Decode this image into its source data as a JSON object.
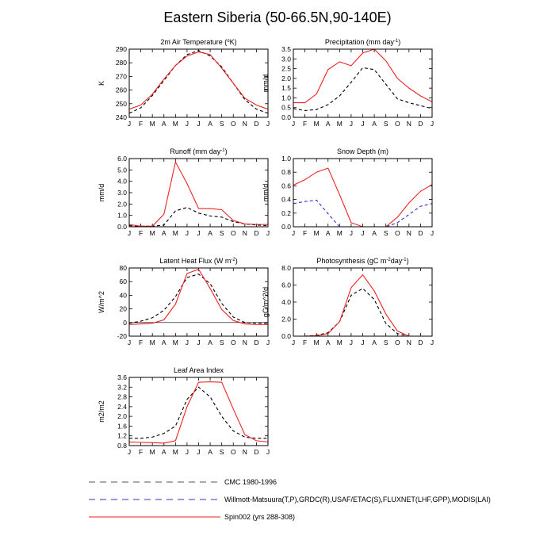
{
  "figure": {
    "title": "Eastern Siberia (50-66.5N,90-140E)"
  },
  "months": [
    "J",
    "F",
    "M",
    "A",
    "M",
    "J",
    "J",
    "A",
    "S",
    "O",
    "N",
    "D",
    "J"
  ],
  "legend": [
    {
      "key": "cmc",
      "label": "CMC 1980-1996",
      "color": "#555555",
      "dash": "8,6"
    },
    {
      "key": "obs",
      "label": "Willmott-Matsuura(T,P),GRDC(R),USAF/ETAC(S),FLUXNET(LHF,GPP),MODIS(LAI)",
      "color": "#3333cc",
      "dash": "8,6"
    },
    {
      "key": "spin",
      "label": "Spin002 (yrs 288-308)",
      "color": "#ee2222",
      "dash": ""
    }
  ],
  "chart_data": [
    {
      "type": "line",
      "title": "2m Air Temperature (",
      "title_sup": "o",
      "title_tail": "K)",
      "ylabel": "K",
      "ylim": [
        240,
        290
      ],
      "yticks": [
        "240",
        "250",
        "260",
        "270",
        "280",
        "290"
      ],
      "yvals": [
        240,
        250,
        260,
        270,
        280,
        290
      ],
      "series": [
        {
          "key": "cmc",
          "values": [
            243,
            247,
            256,
            267,
            278,
            286,
            289,
            285,
            277,
            265,
            253,
            246,
            243
          ]
        },
        {
          "key": "spin",
          "values": [
            246,
            249,
            257,
            268,
            278,
            285,
            288,
            286,
            276,
            265,
            254,
            249,
            246
          ]
        }
      ]
    },
    {
      "type": "line",
      "title": "Precipitation (mm day",
      "title_sup": "-1",
      "title_tail": ")",
      "ylabel": "mm/d",
      "ylim": [
        0,
        3.5
      ],
      "yticks": [
        "0.0",
        "0.5",
        "1.0",
        "1.5",
        "2.0",
        "2.5",
        "3.0",
        "3.5"
      ],
      "yvals": [
        0,
        0.5,
        1,
        1.5,
        2,
        2.5,
        3,
        3.5
      ],
      "series": [
        {
          "key": "cmc",
          "values": [
            0.45,
            0.35,
            0.4,
            0.65,
            1.1,
            1.8,
            2.55,
            2.45,
            1.7,
            0.95,
            0.75,
            0.6,
            0.45
          ]
        },
        {
          "key": "spin",
          "values": [
            0.75,
            0.75,
            1.2,
            2.45,
            2.85,
            2.65,
            3.3,
            3.5,
            2.9,
            2.0,
            1.5,
            1.1,
            0.8
          ]
        }
      ]
    },
    {
      "type": "line",
      "title": "Runoff (mm day",
      "title_sup": "-1",
      "title_tail": ")",
      "ylabel": "mm/d",
      "ylim": [
        0,
        6
      ],
      "yticks": [
        "0.0",
        "1.0",
        "2.0",
        "3.0",
        "4.0",
        "5.0",
        "6.0"
      ],
      "yvals": [
        0,
        1,
        2,
        3,
        4,
        5,
        6
      ],
      "series": [
        {
          "key": "cmc",
          "values": [
            0.1,
            0.05,
            0.05,
            0.15,
            1.4,
            1.7,
            1.2,
            0.95,
            0.85,
            0.45,
            0.25,
            0.15,
            0.1
          ]
        },
        {
          "key": "spin",
          "values": [
            0.2,
            0.05,
            0.05,
            1.1,
            5.7,
            3.8,
            1.6,
            1.6,
            1.5,
            0.55,
            0.25,
            0.2,
            0.2
          ]
        }
      ]
    },
    {
      "type": "line",
      "title": "Snow Depth (m)",
      "title_sup": "",
      "title_tail": "",
      "ylabel": "mm/d",
      "ylim": [
        0,
        1
      ],
      "yticks": [
        "0.0",
        "0.2",
        "0.4",
        "0.6",
        "0.8",
        "1.0"
      ],
      "yvals": [
        0,
        0.2,
        0.4,
        0.6,
        0.8,
        1.0
      ],
      "series": [
        {
          "key": "obs",
          "values": [
            0.34,
            0.37,
            0.39,
            0.19,
            0.0,
            0.0,
            0.0,
            0.0,
            0.0,
            0.06,
            0.18,
            0.3,
            0.34
          ]
        },
        {
          "key": "spin",
          "values": [
            0.61,
            0.69,
            0.8,
            0.86,
            0.47,
            0.06,
            0.0,
            0.0,
            0.0,
            0.14,
            0.35,
            0.52,
            0.62
          ]
        }
      ]
    },
    {
      "type": "line",
      "title": "Latent Heat Flux (W m",
      "title_sup": "-2",
      "title_tail": ")",
      "ylabel": "W/m^2",
      "ylim": [
        -20,
        80
      ],
      "yticks": [
        "-20",
        "0",
        "20",
        "40",
        "60",
        "80"
      ],
      "yvals": [
        -20,
        0,
        20,
        40,
        60,
        80
      ],
      "series": [
        {
          "key": "cmc",
          "values": [
            -1,
            2,
            7,
            18,
            38,
            66,
            71,
            57,
            28,
            8,
            0,
            -1,
            -1
          ]
        },
        {
          "key": "spin",
          "values": [
            -3,
            -2,
            -1,
            4,
            27,
            72,
            78,
            50,
            19,
            3,
            -2,
            -3,
            -3
          ]
        }
      ]
    },
    {
      "type": "line",
      "title": "Photosynthesis (gC m",
      "title_sup": "-2",
      "title_tail": "day",
      "title_sup2": "-1",
      "title_tail2": ")",
      "ylabel": "gC/m^2/d",
      "ylim": [
        0,
        8
      ],
      "yticks": [
        "0.0",
        "2.0",
        "4.0",
        "6.0",
        "8.0"
      ],
      "yvals": [
        0,
        2,
        4,
        6,
        8
      ],
      "series": [
        {
          "key": "cmc",
          "values": [
            0,
            0,
            0.1,
            0.4,
            1.7,
            4.8,
            5.6,
            4.3,
            1.5,
            0.3,
            0,
            0,
            0
          ]
        },
        {
          "key": "spin",
          "values": [
            0,
            0,
            0.05,
            0.3,
            1.7,
            5.7,
            7.2,
            5.3,
            2.6,
            0.6,
            0,
            0,
            0
          ]
        }
      ]
    },
    {
      "type": "line",
      "title": "Leaf Area Index",
      "title_sup": "",
      "title_tail": "",
      "ylabel": "m2/m2",
      "ylim": [
        0.8,
        3.6
      ],
      "yticks": [
        "0.8",
        "1.2",
        "1.6",
        "2.0",
        "2.4",
        "2.8",
        "3.2",
        "3.6"
      ],
      "yvals": [
        0.8,
        1.2,
        1.6,
        2.0,
        2.4,
        2.8,
        3.2,
        3.6
      ],
      "series": [
        {
          "key": "cmc",
          "values": [
            1.1,
            1.1,
            1.15,
            1.3,
            1.6,
            2.7,
            3.2,
            2.8,
            2.0,
            1.4,
            1.15,
            1.1,
            1.1
          ]
        },
        {
          "key": "spin",
          "values": [
            0.95,
            0.93,
            0.92,
            0.9,
            1.0,
            2.4,
            3.4,
            3.42,
            3.4,
            2.3,
            1.25,
            1.0,
            0.95
          ]
        }
      ]
    }
  ]
}
